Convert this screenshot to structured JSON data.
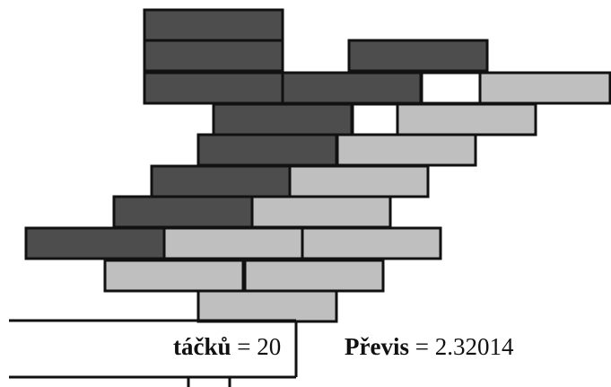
{
  "colors": {
    "dark_block": "#4d4d4d",
    "light_block": "#bfbfbf",
    "empty_block": "#ffffff",
    "outline": "#111111",
    "background": "#ffffff"
  },
  "stack": {
    "rows_top_to_bottom": [
      {
        "blocks": [
          "dark"
        ]
      },
      {
        "blocks": [
          "dark",
          "dark"
        ]
      },
      {
        "blocks": [
          "dark",
          "dark",
          "empty",
          "light"
        ]
      },
      {
        "blocks": [
          "dark",
          "empty",
          "light"
        ]
      },
      {
        "blocks": [
          "dark",
          "light"
        ]
      },
      {
        "blocks": [
          "dark",
          "light"
        ]
      },
      {
        "blocks": [
          "dark",
          "light"
        ]
      },
      {
        "blocks": [
          "dark",
          "light",
          "light"
        ]
      },
      {
        "blocks": [
          "light",
          "light"
        ]
      },
      {
        "blocks": [
          "light"
        ]
      }
    ]
  },
  "labels": {
    "count_label": "táčků",
    "count_equals": "= 20",
    "overhang_label": "Převis",
    "overhang_equals": "= 2.32014"
  }
}
